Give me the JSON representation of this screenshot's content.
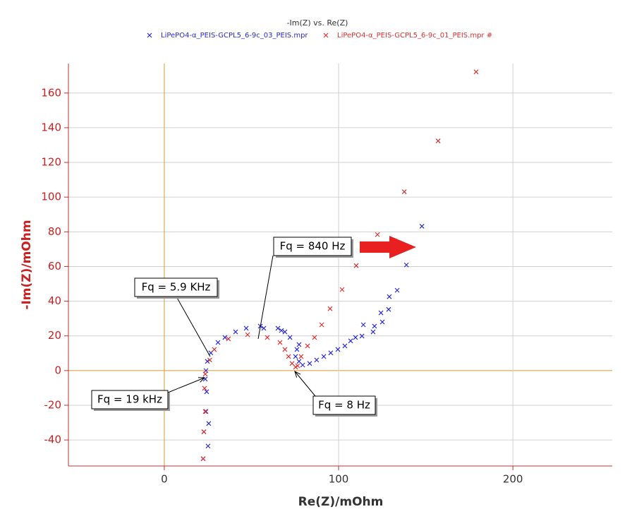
{
  "chart_data": {
    "type": "scatter",
    "title": "-Im(Z) vs. Re(Z)",
    "x_label": "Re(Z)/mOhm",
    "y_label": "-Im(Z)/mOhm",
    "xlim": [
      -55,
      257
    ],
    "ylim": [
      -55,
      177
    ],
    "xticks": [
      0,
      100,
      200
    ],
    "yticks": [
      -40,
      -20,
      0,
      20,
      40,
      60,
      80,
      100,
      120,
      140,
      160
    ],
    "grid": true,
    "annotations": [
      "Fq = 840 Hz",
      "Fq = 5.9 KHz",
      "Fq = 19 kHz",
      "Fq = 8 Hz"
    ],
    "series": [
      {
        "name": "LiPePO4-α_PEIS-GCPL5_6-9c_03_PEIS.mpr",
        "color": "#2a2ad0",
        "x": [
          147.8,
          138.9,
          133.6,
          129.1,
          128.7,
          124.3,
          125.1,
          120.6,
          119.8,
          114.2,
          113.4,
          109.7,
          106.9,
          103.6,
          99.6,
          95.5,
          91.5,
          87.4,
          83.4,
          79.4,
          77.3,
          75.3,
          76.1,
          77.3,
          72.1,
          69.2,
          67.2,
          65.2,
          57.1,
          55.1,
          47.0,
          40.9,
          34.8,
          30.8,
          26.7,
          24.7,
          23.9,
          23.5,
          24.3,
          23.9,
          25.5,
          22.7,
          25.1,
          22.3
        ],
        "values": [
          83.2,
          60.9,
          46.3,
          42.6,
          35.3,
          33.3,
          28.0,
          25.6,
          22.3,
          26.4,
          19.9,
          19.1,
          17.1,
          14.2,
          12.2,
          10.2,
          8.1,
          6.1,
          4.1,
          3.2,
          5.3,
          8.1,
          12.2,
          15.0,
          19.1,
          22.3,
          23.1,
          24.4,
          24.4,
          25.6,
          24.4,
          22.3,
          19.1,
          16.2,
          10.2,
          5.3,
          0,
          -4.9,
          -12.2,
          -23.6,
          -30.5,
          -35.3,
          -43.5,
          -50.8
        ]
      },
      {
        "name": "LiPePO4-α_PEIS-GCPL5_6-9c_01_PEIS.mpr #",
        "color": "#e03030",
        "x": [
          178.9,
          157.1,
          137.7,
          122.3,
          110.1,
          102.0,
          95.1,
          90.3,
          86.2,
          82.2,
          78.5,
          76.5,
          75.3,
          73.3,
          71.3,
          69.2,
          66.4,
          59.1,
          47.8,
          36.8,
          28.7,
          26.1,
          23.5,
          23.1,
          23.5,
          22.7,
          22.3
        ],
        "values": [
          172.2,
          132.4,
          103.1,
          78.4,
          60.5,
          46.7,
          35.7,
          26.4,
          19.1,
          14.2,
          8.1,
          2.8,
          2.0,
          4.1,
          8.1,
          12.2,
          16.2,
          19.1,
          20.7,
          18.3,
          12.2,
          6.1,
          -2.0,
          -10.2,
          -23.6,
          -35.3,
          -50.8
        ]
      }
    ]
  }
}
